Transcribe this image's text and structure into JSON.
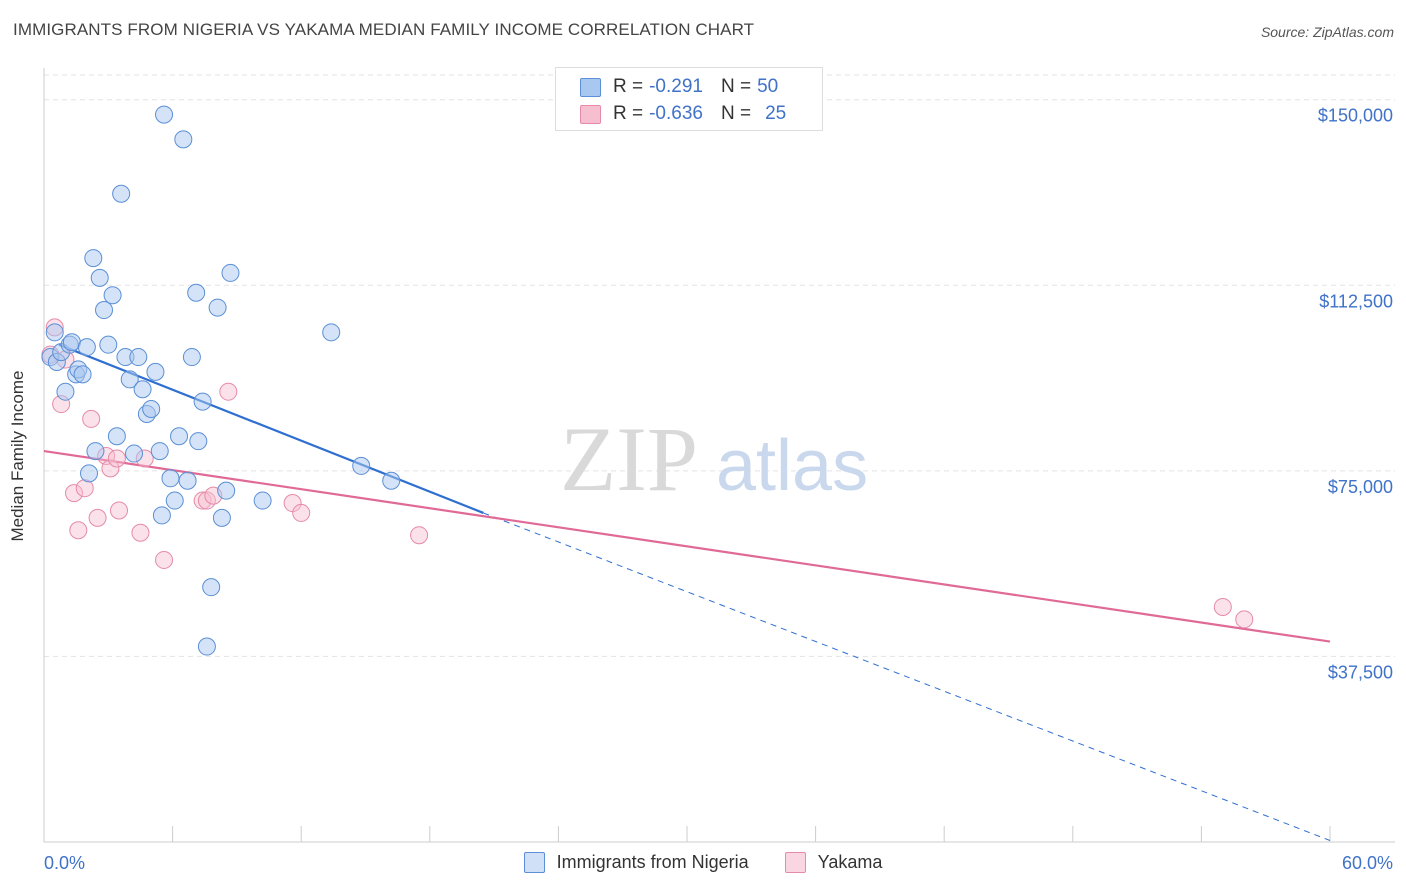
{
  "header": {
    "title": "IMMIGRANTS FROM NIGERIA VS YAKAMA MEDIAN FAMILY INCOME CORRELATION CHART",
    "source": "Source: ZipAtlas.com"
  },
  "legend": {
    "rows": [
      {
        "r_label": "R =",
        "r_value": "-0.291",
        "n_label": "N =",
        "n_value": "50"
      },
      {
        "r_label": "R =",
        "r_value": "-0.636",
        "n_label": "N =",
        "n_value": "25"
      }
    ]
  },
  "watermark": {
    "zip": "ZIP",
    "atlas": "atlas"
  },
  "colors": {
    "series1_fill": "#a9c8f0",
    "series1_stroke": "#5b8fd6",
    "series1_line": "#2f6fd0",
    "series2_fill": "#f6bfd0",
    "series2_stroke": "#e58aa8",
    "series2_line": "#e06a96",
    "tick_text": "#3f72c8",
    "grid": "#e3e3e3"
  },
  "chart_data": {
    "type": "scatter",
    "title": "IMMIGRANTS FROM NIGERIA VS YAKAMA MEDIAN FAMILY INCOME CORRELATION CHART",
    "xlabel": "",
    "ylabel": "Median Family Income",
    "xlim": [
      0,
      60
    ],
    "ylim": [
      0,
      155000
    ],
    "x_tick_labels": [
      "0.0%",
      "60.0%"
    ],
    "y_ticks": [
      37500,
      75000,
      112500,
      150000
    ],
    "y_tick_labels": [
      "$37,500",
      "$75,000",
      "$112,500",
      "$150,000"
    ],
    "grid": true,
    "legend_position": "top-center",
    "series": [
      {
        "name": "Immigrants from Nigeria",
        "r": -0.291,
        "n": 50,
        "trend": {
          "x0": 0.7,
          "y0": 100500,
          "x1": 20.5,
          "y1": 66500,
          "dash_to_x": 60,
          "dash_to_y": 300
        },
        "points": [
          [
            0.3,
            98000
          ],
          [
            0.5,
            103000
          ],
          [
            0.6,
            97000
          ],
          [
            0.8,
            99000
          ],
          [
            1.0,
            91000
          ],
          [
            1.2,
            100500
          ],
          [
            1.3,
            101000
          ],
          [
            1.5,
            94500
          ],
          [
            1.6,
            95500
          ],
          [
            1.8,
            94500
          ],
          [
            2.0,
            100000
          ],
          [
            2.1,
            74500
          ],
          [
            2.3,
            118000
          ],
          [
            2.4,
            79000
          ],
          [
            2.6,
            114000
          ],
          [
            2.8,
            107500
          ],
          [
            3.0,
            100500
          ],
          [
            3.2,
            110500
          ],
          [
            3.4,
            82000
          ],
          [
            3.6,
            131000
          ],
          [
            3.8,
            98000
          ],
          [
            4.0,
            93500
          ],
          [
            4.2,
            78500
          ],
          [
            4.4,
            98000
          ],
          [
            4.6,
            91500
          ],
          [
            4.8,
            86500
          ],
          [
            5.0,
            87500
          ],
          [
            5.2,
            95000
          ],
          [
            5.4,
            79000
          ],
          [
            5.5,
            66000
          ],
          [
            5.6,
            147000
          ],
          [
            5.9,
            73500
          ],
          [
            6.1,
            69000
          ],
          [
            6.3,
            82000
          ],
          [
            6.5,
            142000
          ],
          [
            6.7,
            73000
          ],
          [
            6.9,
            98000
          ],
          [
            7.1,
            111000
          ],
          [
            7.2,
            81000
          ],
          [
            7.4,
            89000
          ],
          [
            7.6,
            39500
          ],
          [
            7.8,
            51500
          ],
          [
            8.1,
            108000
          ],
          [
            8.3,
            65500
          ],
          [
            8.5,
            71000
          ],
          [
            8.7,
            115000
          ],
          [
            10.2,
            69000
          ],
          [
            13.4,
            103000
          ],
          [
            14.8,
            76000
          ],
          [
            16.2,
            73000
          ]
        ]
      },
      {
        "name": "Yakama",
        "r": -0.636,
        "n": 25,
        "trend": {
          "x0": 0,
          "y0": 79000,
          "x1": 60,
          "y1": 40500
        },
        "points": [
          [
            0.3,
            98500
          ],
          [
            0.5,
            104000
          ],
          [
            0.8,
            88500
          ],
          [
            1.0,
            97500
          ],
          [
            1.4,
            70500
          ],
          [
            1.6,
            63000
          ],
          [
            1.9,
            71500
          ],
          [
            2.2,
            85500
          ],
          [
            2.5,
            65500
          ],
          [
            2.9,
            78000
          ],
          [
            3.1,
            75500
          ],
          [
            3.4,
            77500
          ],
          [
            3.5,
            67000
          ],
          [
            4.5,
            62500
          ],
          [
            4.7,
            77500
          ],
          [
            5.6,
            57000
          ],
          [
            7.4,
            69000
          ],
          [
            7.6,
            69000
          ],
          [
            7.9,
            70000
          ],
          [
            8.6,
            91000
          ],
          [
            11.6,
            68500
          ],
          [
            12.0,
            66500
          ],
          [
            17.5,
            62000
          ],
          [
            55.0,
            47500
          ],
          [
            56.0,
            45000
          ]
        ]
      }
    ]
  }
}
